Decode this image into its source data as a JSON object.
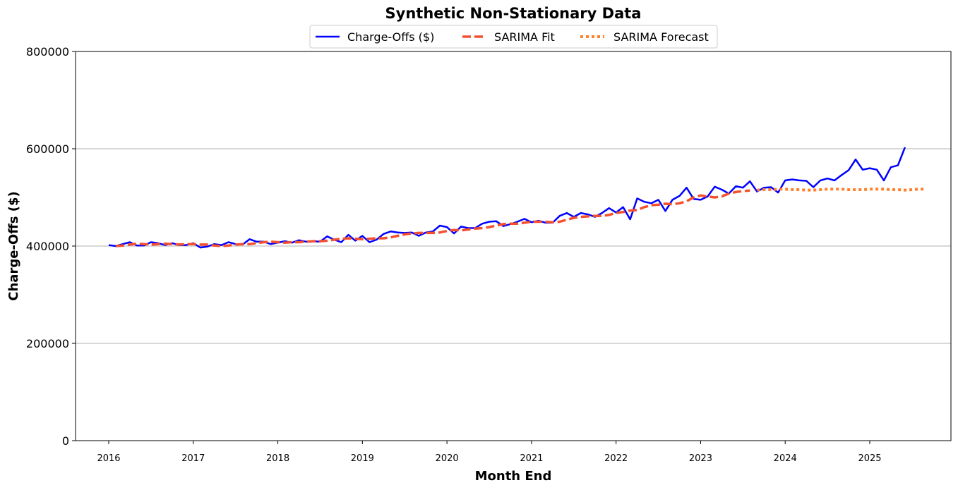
{
  "chart_data": {
    "type": "line",
    "title": "Synthetic Non-Stationary Data",
    "xlabel": "Month End",
    "ylabel": "Charge-Offs ($)",
    "ylim": [
      0,
      800000
    ],
    "y_ticks": [
      "0",
      "200000",
      "400000",
      "600000",
      "800000"
    ],
    "x_ticks": [
      "2016",
      "2017",
      "2018",
      "2019",
      "2020",
      "2021",
      "2022",
      "2023",
      "2024",
      "2025"
    ],
    "grid": "horizontal",
    "legend_position": "top-center",
    "series": [
      {
        "name": "Charge-Offs ($)",
        "color": "#0000ff",
        "style": "solid",
        "x_start": "2016-01",
        "frequency": "monthly",
        "values": [
          402000,
          400000,
          404000,
          408000,
          401000,
          401000,
          408000,
          406000,
          402000,
          406000,
          402000,
          402000,
          406000,
          397000,
          399000,
          404000,
          402000,
          408000,
          404000,
          403000,
          414000,
          409000,
          409000,
          404000,
          407000,
          410000,
          407000,
          412000,
          409000,
          410000,
          409000,
          420000,
          413000,
          408000,
          423000,
          411000,
          421000,
          408000,
          413000,
          425000,
          430000,
          428000,
          427000,
          428000,
          421000,
          428000,
          430000,
          442000,
          439000,
          426000,
          440000,
          437000,
          437000,
          446000,
          450000,
          451000,
          441000,
          445000,
          450000,
          456000,
          449000,
          452000,
          448000,
          448000,
          462000,
          468000,
          460000,
          468000,
          465000,
          460000,
          468000,
          478000,
          469000,
          480000,
          455000,
          498000,
          491000,
          488000,
          495000,
          472000,
          495000,
          503000,
          520000,
          497000,
          495000,
          502000,
          522000,
          516000,
          508000,
          523000,
          520000,
          533000,
          512000,
          520000,
          521000,
          510000,
          535000,
          537000,
          535000,
          534000,
          521000,
          535000,
          539000,
          535000,
          546000,
          556000,
          578000,
          557000,
          560000,
          557000,
          535000,
          562000,
          566000,
          603000
        ]
      },
      {
        "name": "SARIMA Fit",
        "color": "#f4502e",
        "style": "dashed",
        "x_start": "2016-02",
        "frequency": "monthly",
        "values": [
          400000,
          401000,
          403000,
          405000,
          404000,
          403000,
          404000,
          405000,
          404000,
          403000,
          404000,
          404000,
          403000,
          403000,
          401000,
          400000,
          401000,
          403000,
          404000,
          404000,
          406000,
          408000,
          409000,
          408000,
          407000,
          408000,
          408000,
          409000,
          410000,
          410000,
          411000,
          413000,
          415000,
          416000,
          415000,
          414000,
          415000,
          416000,
          416000,
          418000,
          421000,
          424000,
          426000,
          427000,
          427000,
          427000,
          428000,
          431000,
          433000,
          432000,
          434000,
          436000,
          437000,
          439000,
          442000,
          445000,
          446000,
          446000,
          448000,
          450000,
          450000,
          450000,
          449000,
          450000,
          454000,
          458000,
          460000,
          461000,
          462000,
          462000,
          464000,
          468000,
          470000,
          473000,
          474000,
          480000,
          484000,
          485000,
          487000,
          486000,
          488000,
          492000,
          500000,
          504000,
          502000,
          500000,
          502000,
          508000,
          511000,
          513000,
          514000
        ]
      },
      {
        "name": "SARIMA Forecast",
        "color": "#ff7f2a",
        "style": "dotted",
        "x_start": "2023-09",
        "frequency": "monthly",
        "values": [
          515000,
          516000,
          516000,
          517000,
          517000,
          516000,
          516000,
          515000,
          515000,
          516000,
          517000,
          517000,
          517000,
          516000,
          516000,
          516000,
          517000,
          517000,
          517000,
          516000,
          516000,
          515000,
          516000,
          517000,
          517000
        ]
      }
    ]
  }
}
